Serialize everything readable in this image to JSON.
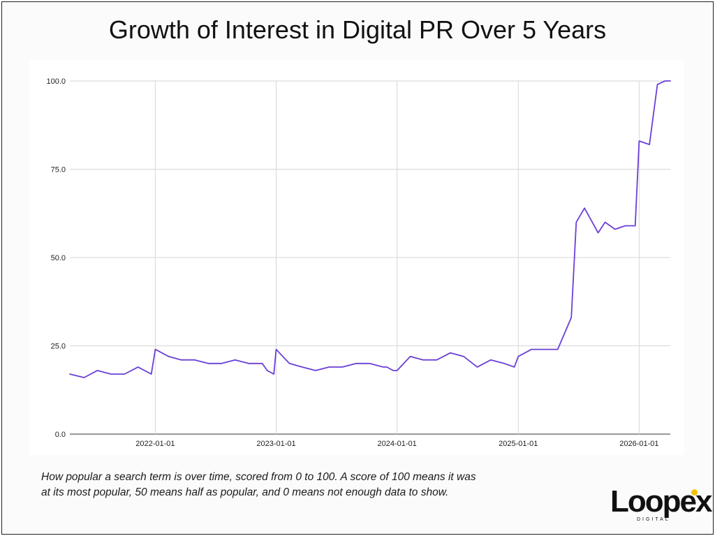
{
  "title": "Growth of Interest in Digital PR Over 5 Years",
  "caption": {
    "line1": "How popular a search term is over time, scored from 0 to 100. A score of 100 means it was",
    "line2": "at its most popular, 50 means half as popular, and 0 means not enough data to show."
  },
  "logo": {
    "word": "Loopex",
    "sub": "DIGITAL",
    "accent_color": "#f2c400"
  },
  "colors": {
    "line": "#6a3fd6",
    "grid": "#d6d6d6",
    "axis": "#333333"
  },
  "chart_data": {
    "type": "line",
    "title": "",
    "xlabel": "",
    "ylabel": "",
    "ylim": [
      0,
      100
    ],
    "y_ticks": [
      "0.0",
      "25.0",
      "50.0",
      "75.0",
      "100.0"
    ],
    "x_ticks": [
      "2022-01-01",
      "2023-01-01",
      "2024-01-01",
      "2025-01-01",
      "2026-01-01"
    ],
    "xlim": [
      "2021-04-18",
      "2026-04-05"
    ],
    "grid": true,
    "series": [
      {
        "x": [
          "2021-04-18",
          "2021-05-31",
          "2021-07-10",
          "2021-08-20",
          "2021-09-30",
          "2021-11-10",
          "2021-12-20",
          "2022-01-01",
          "2022-02-10",
          "2022-03-20",
          "2022-04-30",
          "2022-06-10",
          "2022-07-20",
          "2022-08-30",
          "2022-10-10",
          "2022-11-20",
          "2022-12-05",
          "2022-12-25",
          "2023-01-01",
          "2023-02-10",
          "2023-03-20",
          "2023-04-30",
          "2023-06-10",
          "2023-07-20",
          "2023-08-30",
          "2023-10-10",
          "2023-11-20",
          "2023-12-01",
          "2023-12-20",
          "2024-01-01",
          "2024-02-10",
          "2024-03-20",
          "2024-04-30",
          "2024-06-10",
          "2024-07-20",
          "2024-08-30",
          "2024-10-10",
          "2024-11-20",
          "2024-12-20",
          "2025-01-01",
          "2025-02-10",
          "2025-03-20",
          "2025-04-30",
          "2025-06-10",
          "2025-06-25",
          "2025-07-20",
          "2025-08-30",
          "2025-09-20",
          "2025-10-20",
          "2025-11-20",
          "2025-12-20",
          "2026-01-01",
          "2026-02-01",
          "2026-02-25",
          "2026-03-20",
          "2026-04-05"
        ],
        "values": [
          17,
          16,
          18,
          17,
          17,
          19,
          17,
          24,
          22,
          21,
          21,
          20,
          20,
          21,
          20,
          20,
          18,
          17,
          24,
          20,
          19,
          18,
          19,
          19,
          20,
          20,
          19,
          19,
          18,
          18,
          22,
          21,
          21,
          23,
          22,
          19,
          21,
          20,
          19,
          22,
          24,
          24,
          24,
          33,
          60,
          64,
          57,
          60,
          58,
          59,
          59,
          83,
          82,
          99,
          100,
          100
        ]
      }
    ]
  }
}
